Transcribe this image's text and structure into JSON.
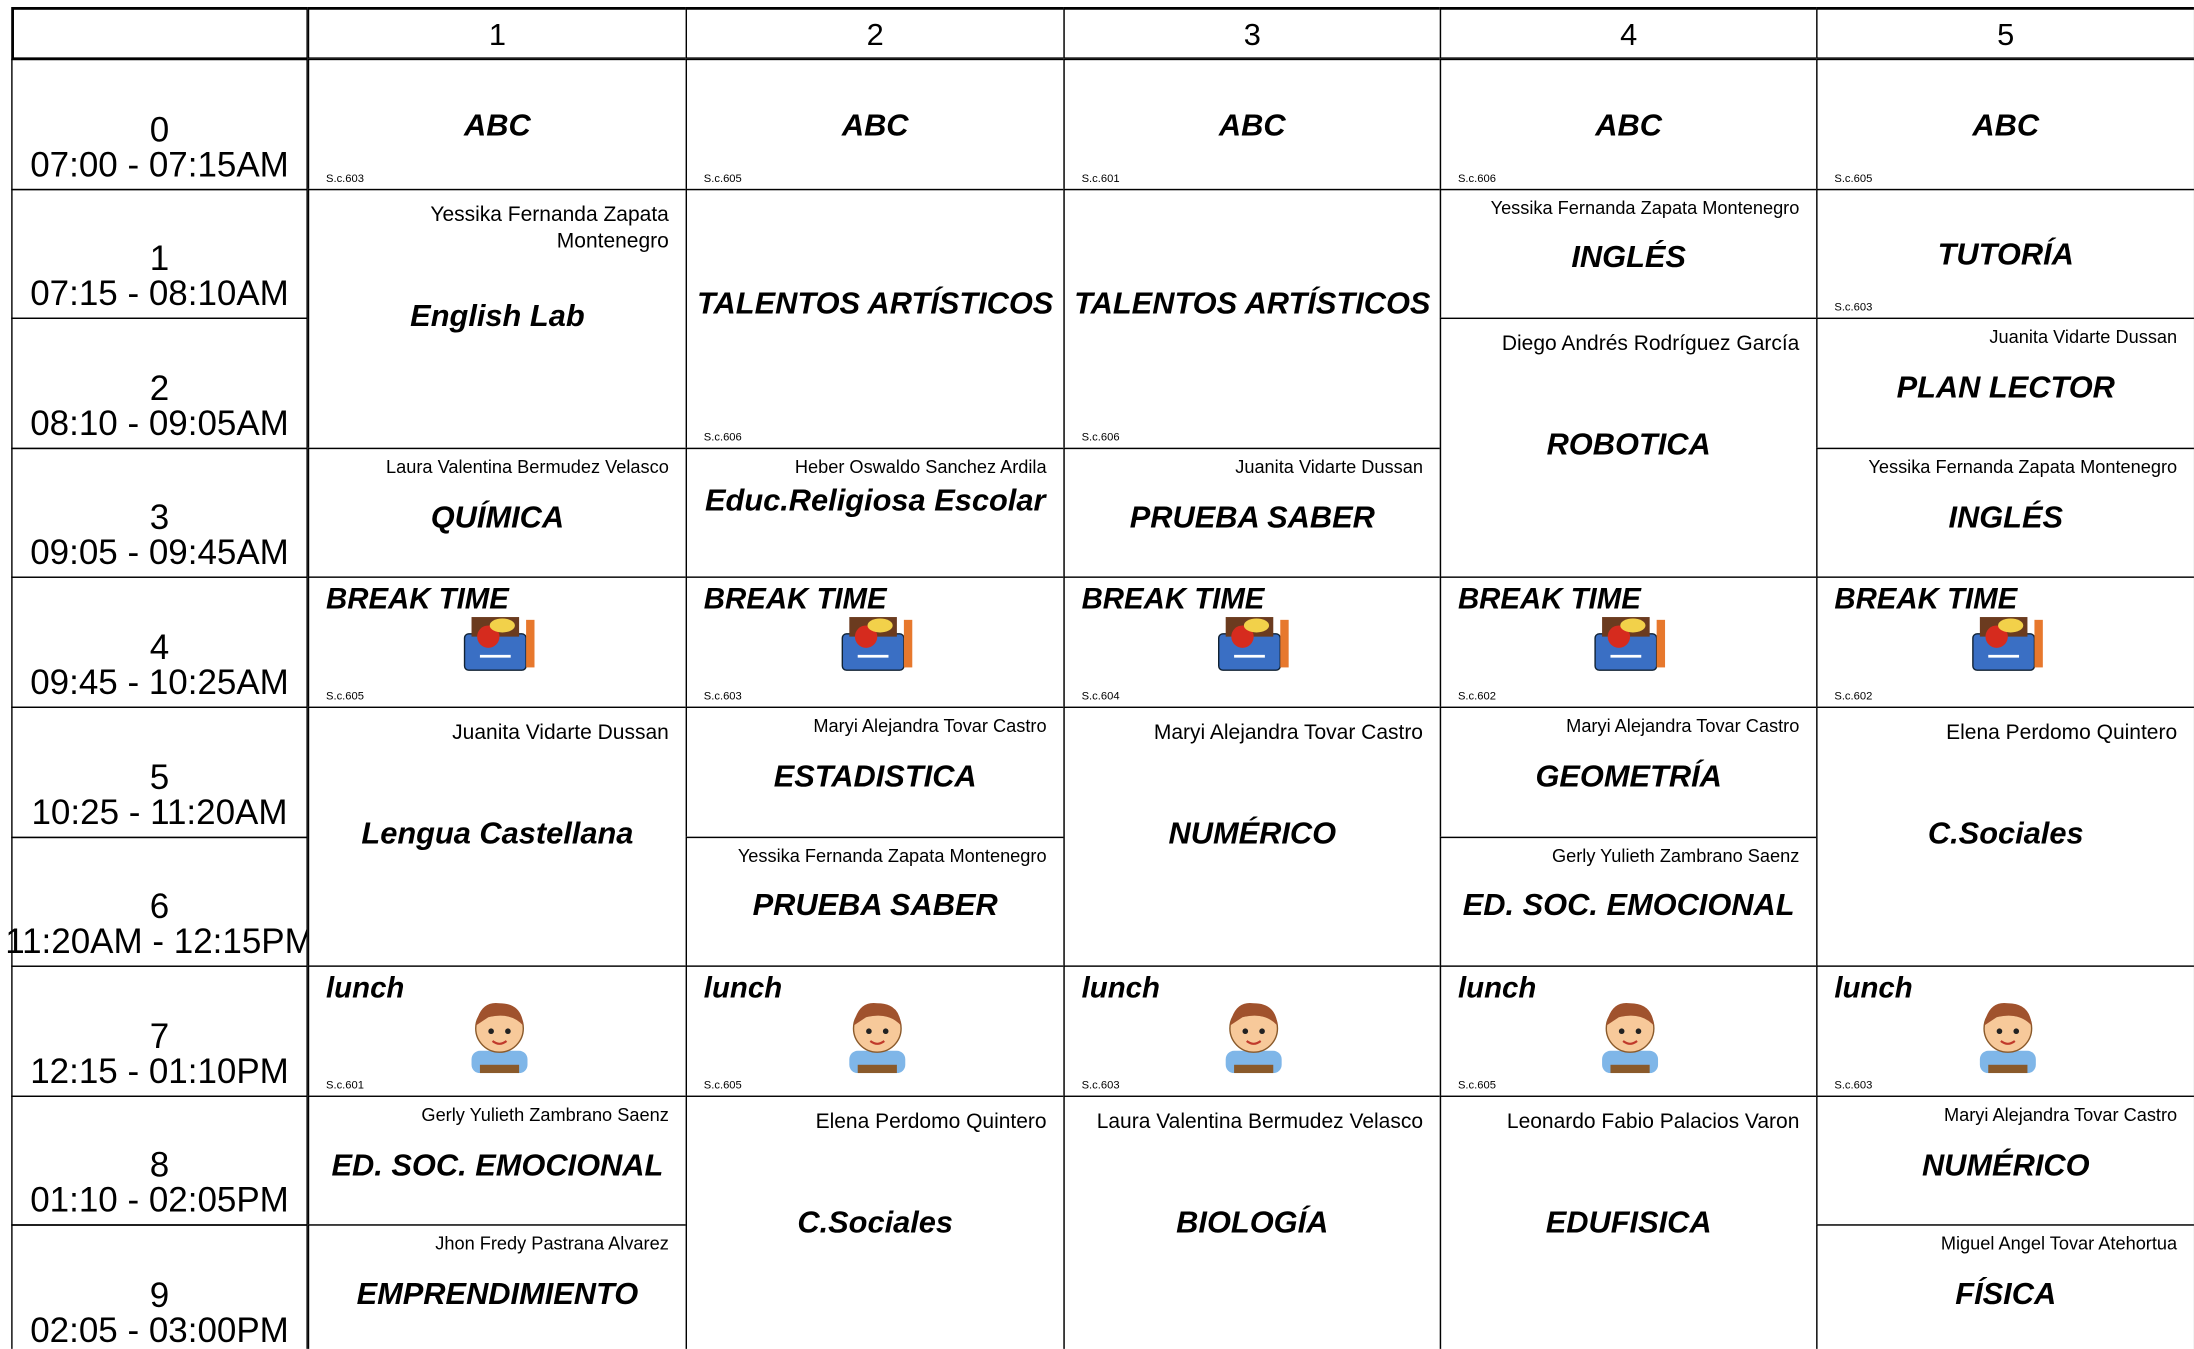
{
  "table": {
    "days": [
      "1",
      "2",
      "3",
      "4",
      "5"
    ],
    "periods": [
      {
        "number": "0",
        "time": "07:00 - 07:15AM"
      },
      {
        "number": "1",
        "time": "07:15 - 08:10AM"
      },
      {
        "number": "2",
        "time": "08:10 - 09:05AM"
      },
      {
        "number": "3",
        "time": "09:05 - 09:45AM"
      },
      {
        "number": "4",
        "time": "09:45 - 10:25AM"
      },
      {
        "number": "5",
        "time": "10:25 - 11:20AM"
      },
      {
        "number": "6",
        "time": "11:20AM - 12:15PM"
      },
      {
        "number": "7",
        "time": "12:15 - 01:10PM"
      },
      {
        "number": "8",
        "time": "01:10 - 02:05PM"
      },
      {
        "number": "9",
        "time": "02:05 - 03:00PM"
      }
    ],
    "cells": [
      {
        "day": 0,
        "row": 0,
        "span": 1,
        "subject": "ABC",
        "room": "S.c.603"
      },
      {
        "day": 0,
        "row": 1,
        "span": 2,
        "subject": "English Lab",
        "teacher": "Yessika Fernanda Zapata Montenegro"
      },
      {
        "day": 0,
        "row": 3,
        "span": 1,
        "subject": "QUÍMICA",
        "teacher": "Laura Valentina Bermudez Velasco"
      },
      {
        "day": 0,
        "row": 4,
        "span": 1,
        "subject": "BREAK TIME",
        "room": "S.c.605",
        "icon": "box"
      },
      {
        "day": 0,
        "row": 5,
        "span": 2,
        "subject": "Lengua Castellana",
        "teacher": "Juanita Vidarte Dussan"
      },
      {
        "day": 0,
        "row": 7,
        "span": 1,
        "subject": "lunch",
        "room": "S.c.601",
        "icon": "boy"
      },
      {
        "day": 0,
        "row": 8,
        "span": 1,
        "subject": "ED. SOC. EMOCIONAL",
        "teacher": "Gerly Yulieth Zambrano Saenz"
      },
      {
        "day": 0,
        "row": 9,
        "span": 1,
        "subject": "EMPRENDIMIENTO",
        "teacher": "Jhon Fredy Pastrana Alvarez"
      },
      {
        "day": 1,
        "row": 0,
        "span": 1,
        "subject": "ABC",
        "room": "S.c.605"
      },
      {
        "day": 1,
        "row": 1,
        "span": 2,
        "subject": "TALENTOS ARTÍSTICOS",
        "room": "S.c.606"
      },
      {
        "day": 1,
        "row": 3,
        "span": 1,
        "subject": "Educ.Religiosa Escolar",
        "teacher": "Heber Oswaldo Sanchez Ardila"
      },
      {
        "day": 1,
        "row": 4,
        "span": 1,
        "subject": "BREAK TIME",
        "room": "S.c.603",
        "icon": "box"
      },
      {
        "day": 1,
        "row": 5,
        "span": 1,
        "subject": "ESTADISTICA",
        "teacher": "Maryi Alejandra Tovar Castro"
      },
      {
        "day": 1,
        "row": 6,
        "span": 1,
        "subject": "PRUEBA SABER",
        "teacher": "Yessika Fernanda Zapata Montenegro"
      },
      {
        "day": 1,
        "row": 7,
        "span": 1,
        "subject": "lunch",
        "room": "S.c.605",
        "icon": "boy"
      },
      {
        "day": 1,
        "row": 8,
        "span": 2,
        "subject": "C.Sociales",
        "teacher": "Elena Perdomo Quintero"
      },
      {
        "day": 2,
        "row": 0,
        "span": 1,
        "subject": "ABC",
        "room": "S.c.601"
      },
      {
        "day": 2,
        "row": 1,
        "span": 2,
        "subject": "TALENTOS ARTÍSTICOS",
        "room": "S.c.606"
      },
      {
        "day": 2,
        "row": 3,
        "span": 1,
        "subject": "PRUEBA SABER",
        "teacher": "Juanita Vidarte Dussan"
      },
      {
        "day": 2,
        "row": 4,
        "span": 1,
        "subject": "BREAK TIME",
        "room": "S.c.604",
        "icon": "box"
      },
      {
        "day": 2,
        "row": 5,
        "span": 2,
        "subject": "NUMÉRICO",
        "teacher": "Maryi Alejandra Tovar Castro"
      },
      {
        "day": 2,
        "row": 7,
        "span": 1,
        "subject": "lunch",
        "room": "S.c.603",
        "icon": "boy"
      },
      {
        "day": 2,
        "row": 8,
        "span": 2,
        "subject": "BIOLOGÍA",
        "teacher": "Laura Valentina Bermudez Velasco"
      },
      {
        "day": 3,
        "row": 0,
        "span": 1,
        "subject": "ABC",
        "room": "S.c.606"
      },
      {
        "day": 3,
        "row": 1,
        "span": 1,
        "subject": "INGLÉS",
        "teacher": "Yessika Fernanda Zapata Montenegro"
      },
      {
        "day": 3,
        "row": 2,
        "span": 2,
        "subject": "ROBOTICA",
        "teacher": "Diego Andrés Rodríguez García"
      },
      {
        "day": 3,
        "row": 4,
        "span": 1,
        "subject": "BREAK TIME",
        "room": "S.c.602",
        "icon": "box"
      },
      {
        "day": 3,
        "row": 5,
        "span": 1,
        "subject": "GEOMETRÍA",
        "teacher": "Maryi Alejandra Tovar Castro"
      },
      {
        "day": 3,
        "row": 6,
        "span": 1,
        "subject": "ED. SOC. EMOCIONAL",
        "teacher": "Gerly Yulieth Zambrano Saenz"
      },
      {
        "day": 3,
        "row": 7,
        "span": 1,
        "subject": "lunch",
        "room": "S.c.605",
        "icon": "boy"
      },
      {
        "day": 3,
        "row": 8,
        "span": 2,
        "subject": "EDUFISICA",
        "teacher": "Leonardo Fabio Palacios Varon"
      },
      {
        "day": 4,
        "row": 0,
        "span": 1,
        "subject": "ABC",
        "room": "S.c.605"
      },
      {
        "day": 4,
        "row": 1,
        "span": 1,
        "subject": "TUTORÍA",
        "room": "S.c.603"
      },
      {
        "day": 4,
        "row": 2,
        "span": 1,
        "subject": "PLAN LECTOR",
        "teacher": "Juanita Vidarte Dussan"
      },
      {
        "day": 4,
        "row": 3,
        "span": 1,
        "subject": "INGLÉS",
        "teacher": "Yessika Fernanda Zapata Montenegro"
      },
      {
        "day": 4,
        "row": 4,
        "span": 1,
        "subject": "BREAK TIME",
        "room": "S.c.602",
        "icon": "box"
      },
      {
        "day": 4,
        "row": 5,
        "span": 2,
        "subject": "C.Sociales",
        "teacher": "Elena Perdomo Quintero"
      },
      {
        "day": 4,
        "row": 7,
        "span": 1,
        "subject": "lunch",
        "room": "S.c.603",
        "icon": "boy"
      },
      {
        "day": 4,
        "row": 8,
        "span": 1,
        "subject": "NUMÉRICO",
        "teacher": "Maryi Alejandra Tovar Castro"
      },
      {
        "day": 4,
        "row": 9,
        "span": 1,
        "subject": "FÍSICA",
        "teacher": "Miguel Angel Tovar Atehortua"
      }
    ]
  }
}
